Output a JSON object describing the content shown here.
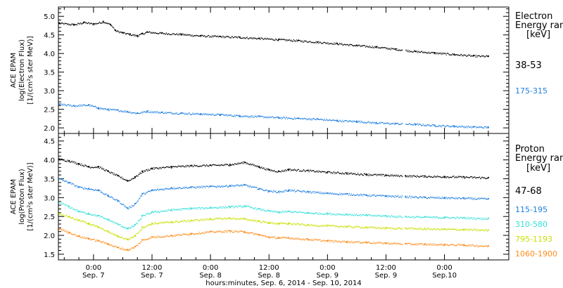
{
  "chart_data": [
    {
      "type": "scatter",
      "title": "",
      "ylabel": [
        "ACE EPAM",
        "log(Electron Flux)",
        "[1/(cm²s ster MeV)]"
      ],
      "ylabel_lines": [
        "ACE EPAM",
        "log(Electron Flux)",
        "[1/(cm²s ster MeV)]"
      ],
      "ylim": [
        1.85,
        5.25
      ],
      "yticks": [
        "5.0",
        "4.5",
        "4.0",
        "3.5",
        "3.0",
        "2.5",
        "2.0"
      ],
      "ytick_values": [
        5.0,
        4.5,
        4.0,
        3.5,
        3.0,
        2.5,
        2.0
      ],
      "legend_title": [
        "Electron",
        "Energy ran",
        "[keV]"
      ],
      "series": [
        {
          "name": "38-53",
          "color": "#000000",
          "points": [
            [
              -7,
              4.82
            ],
            [
              -4,
              4.78
            ],
            [
              -2,
              4.84
            ],
            [
              0,
              4.8
            ],
            [
              2,
              4.86
            ],
            [
              3.5,
              4.78
            ],
            [
              4.5,
              4.62
            ],
            [
              6,
              4.56
            ],
            [
              7.5,
              4.52
            ],
            [
              9,
              4.48
            ],
            [
              10,
              4.54
            ],
            [
              11,
              4.58
            ],
            [
              14,
              4.55
            ],
            [
              18,
              4.52
            ],
            [
              22,
              4.48
            ],
            [
              26,
              4.46
            ],
            [
              30,
              4.44
            ],
            [
              34,
              4.41
            ],
            [
              38,
              4.38
            ],
            [
              42,
              4.35
            ],
            [
              46,
              4.31
            ],
            [
              50,
              4.27
            ],
            [
              54,
              4.22
            ],
            [
              58,
              4.18
            ],
            [
              62,
              4.12
            ],
            [
              66,
              4.06
            ],
            [
              70,
              4.02
            ],
            [
              74,
              3.98
            ],
            [
              78,
              3.94
            ],
            [
              81,
              3.93
            ]
          ]
        },
        {
          "name": "175-315",
          "color": "#1f7fe0",
          "points": [
            [
              -7,
              2.64
            ],
            [
              -4,
              2.6
            ],
            [
              -1,
              2.62
            ],
            [
              1,
              2.54
            ],
            [
              3,
              2.5
            ],
            [
              5,
              2.48
            ],
            [
              7,
              2.44
            ],
            [
              9,
              2.4
            ],
            [
              11,
              2.45
            ],
            [
              14,
              2.42
            ],
            [
              18,
              2.4
            ],
            [
              22,
              2.38
            ],
            [
              26,
              2.36
            ],
            [
              30,
              2.33
            ],
            [
              34,
              2.31
            ],
            [
              38,
              2.28
            ],
            [
              42,
              2.26
            ],
            [
              46,
              2.24
            ],
            [
              50,
              2.2
            ],
            [
              54,
              2.18
            ],
            [
              58,
              2.14
            ],
            [
              62,
              2.12
            ],
            [
              66,
              2.1
            ],
            [
              70,
              2.07
            ],
            [
              74,
              2.05
            ],
            [
              78,
              2.03
            ],
            [
              81,
              2.02
            ]
          ]
        }
      ]
    },
    {
      "type": "scatter",
      "title": "",
      "ylabel": [
        "ACE EPAM",
        "log(Proton Flux)",
        "[1/(cm²s ster MeV)]"
      ],
      "ylabel_lines": [
        "ACE EPAM",
        "log(Proton Flux)",
        "[1/(cm²s ster MeV)]"
      ],
      "ylim": [
        1.35,
        4.7
      ],
      "yticks": [
        "4.5",
        "4.0",
        "3.5",
        "3.0",
        "2.5",
        "2.0",
        "1.5"
      ],
      "ytick_values": [
        4.5,
        4.0,
        3.5,
        3.0,
        2.5,
        2.0,
        1.5
      ],
      "legend_title": [
        "Proton",
        "Energy ran",
        "[keV]"
      ],
      "series": [
        {
          "name": "47-68",
          "color": "#000000",
          "points": [
            [
              -7,
              4.02
            ],
            [
              -5,
              3.98
            ],
            [
              -3,
              3.9
            ],
            [
              -1,
              3.82
            ],
            [
              1,
              3.82
            ],
            [
              3,
              3.7
            ],
            [
              5,
              3.58
            ],
            [
              7,
              3.45
            ],
            [
              8.5,
              3.55
            ],
            [
              10,
              3.7
            ],
            [
              12,
              3.78
            ],
            [
              16,
              3.82
            ],
            [
              20,
              3.85
            ],
            [
              24,
              3.86
            ],
            [
              28,
              3.88
            ],
            [
              31,
              3.94
            ],
            [
              34,
              3.82
            ],
            [
              36,
              3.74
            ],
            [
              38,
              3.7
            ],
            [
              40,
              3.75
            ],
            [
              44,
              3.72
            ],
            [
              48,
              3.68
            ],
            [
              52,
              3.65
            ],
            [
              56,
              3.62
            ],
            [
              60,
              3.6
            ],
            [
              64,
              3.58
            ],
            [
              68,
              3.57
            ],
            [
              72,
              3.56
            ],
            [
              76,
              3.55
            ],
            [
              81,
              3.53
            ]
          ]
        },
        {
          "name": "115-195",
          "color": "#1f7fe0",
          "points": [
            [
              -7,
              3.5
            ],
            [
              -5,
              3.4
            ],
            [
              -3,
              3.28
            ],
            [
              -1,
              3.24
            ],
            [
              1,
              3.2
            ],
            [
              3,
              3.05
            ],
            [
              5,
              2.92
            ],
            [
              7,
              2.72
            ],
            [
              8.5,
              2.84
            ],
            [
              10,
              3.1
            ],
            [
              12,
              3.2
            ],
            [
              16,
              3.26
            ],
            [
              20,
              3.28
            ],
            [
              24,
              3.3
            ],
            [
              28,
              3.32
            ],
            [
              31,
              3.34
            ],
            [
              34,
              3.24
            ],
            [
              36,
              3.18
            ],
            [
              38,
              3.16
            ],
            [
              40,
              3.2
            ],
            [
              44,
              3.16
            ],
            [
              48,
              3.12
            ],
            [
              52,
              3.1
            ],
            [
              56,
              3.07
            ],
            [
              60,
              3.05
            ],
            [
              64,
              3.03
            ],
            [
              68,
              3.01
            ],
            [
              72,
              3.0
            ],
            [
              76,
              2.99
            ],
            [
              81,
              2.97
            ]
          ]
        },
        {
          "name": "310-580",
          "color": "#33e0d8",
          "points": [
            [
              -7,
              2.88
            ],
            [
              -5,
              2.76
            ],
            [
              -3,
              2.64
            ],
            [
              -1,
              2.58
            ],
            [
              1,
              2.52
            ],
            [
              3,
              2.42
            ],
            [
              5,
              2.3
            ],
            [
              7,
              2.18
            ],
            [
              8.5,
              2.28
            ],
            [
              10,
              2.52
            ],
            [
              12,
              2.62
            ],
            [
              16,
              2.68
            ],
            [
              20,
              2.72
            ],
            [
              24,
              2.74
            ],
            [
              28,
              2.76
            ],
            [
              31,
              2.78
            ],
            [
              34,
              2.7
            ],
            [
              36,
              2.65
            ],
            [
              38,
              2.62
            ],
            [
              40,
              2.64
            ],
            [
              44,
              2.6
            ],
            [
              48,
              2.58
            ],
            [
              52,
              2.56
            ],
            [
              56,
              2.54
            ],
            [
              60,
              2.52
            ],
            [
              64,
              2.5
            ],
            [
              68,
              2.49
            ],
            [
              72,
              2.48
            ],
            [
              76,
              2.47
            ],
            [
              81,
              2.45
            ]
          ]
        },
        {
          "name": "795-1193",
          "color": "#c8e000",
          "points": [
            [
              -7,
              2.58
            ],
            [
              -5,
              2.5
            ],
            [
              -3,
              2.4
            ],
            [
              -1,
              2.32
            ],
            [
              1,
              2.22
            ],
            [
              3,
              2.1
            ],
            [
              5,
              1.98
            ],
            [
              7,
              1.9
            ],
            [
              8.5,
              2.0
            ],
            [
              10,
              2.22
            ],
            [
              12,
              2.32
            ],
            [
              16,
              2.36
            ],
            [
              20,
              2.4
            ],
            [
              24,
              2.44
            ],
            [
              28,
              2.46
            ],
            [
              31,
              2.44
            ],
            [
              34,
              2.38
            ],
            [
              36,
              2.34
            ],
            [
              38,
              2.32
            ],
            [
              40,
              2.32
            ],
            [
              44,
              2.28
            ],
            [
              48,
              2.26
            ],
            [
              52,
              2.24
            ],
            [
              56,
              2.22
            ],
            [
              60,
              2.2
            ],
            [
              64,
              2.19
            ],
            [
              68,
              2.18
            ],
            [
              72,
              2.17
            ],
            [
              76,
              2.16
            ],
            [
              81,
              2.14
            ]
          ]
        },
        {
          "name": "1060-1900",
          "color": "#ff8c1a",
          "points": [
            [
              -7,
              2.18
            ],
            [
              -5,
              2.08
            ],
            [
              -3,
              1.98
            ],
            [
              -1,
              1.92
            ],
            [
              1,
              1.86
            ],
            [
              3,
              1.78
            ],
            [
              5,
              1.68
            ],
            [
              7,
              1.62
            ],
            [
              8.5,
              1.7
            ],
            [
              10,
              1.88
            ],
            [
              12,
              1.96
            ],
            [
              16,
              2.0
            ],
            [
              20,
              2.05
            ],
            [
              24,
              2.1
            ],
            [
              28,
              2.12
            ],
            [
              31,
              2.1
            ],
            [
              34,
              2.02
            ],
            [
              36,
              1.96
            ],
            [
              38,
              1.94
            ],
            [
              40,
              1.94
            ],
            [
              44,
              1.9
            ],
            [
              48,
              1.86
            ],
            [
              52,
              1.84
            ],
            [
              56,
              1.82
            ],
            [
              60,
              1.8
            ],
            [
              64,
              1.78
            ],
            [
              68,
              1.77
            ],
            [
              72,
              1.76
            ],
            [
              76,
              1.75
            ],
            [
              81,
              1.72
            ]
          ]
        }
      ]
    }
  ],
  "x_axis": {
    "title": "hours:minutes, Sep.  6, 2014 - Sep. 10, 2014",
    "ticks": [
      {
        "hour": 0,
        "time": "0:00",
        "date": "Sep. 7"
      },
      {
        "hour": 12,
        "time": "12:00",
        "date": "Sep. 7"
      },
      {
        "hour": 24,
        "time": "0:00",
        "date": "Sep. 8"
      },
      {
        "hour": 36,
        "time": "12:00",
        "date": "Sep. 8"
      },
      {
        "hour": 48,
        "time": "0:00",
        "date": "Sep. 9"
      },
      {
        "hour": 60,
        "time": "12:00",
        "date": "Sep. 9"
      },
      {
        "hour": 72,
        "time": "0:00",
        "date": "Sep.10"
      }
    ],
    "xlim": [
      -7.2,
      85.2
    ]
  }
}
